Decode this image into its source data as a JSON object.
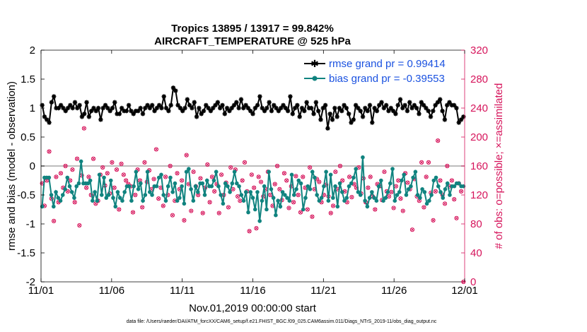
{
  "chart_data": {
    "type": "line",
    "title": "Tropics 13895 / 13917 = 99.842%",
    "subtitle": "AIRCRAFT_TEMPERATURE @ 525 hPa",
    "xlabel": "Nov.01,2019 00:00:00 start",
    "ylabel": "rmse and bias (model - observation)",
    "y2label": "# of obs: o=possible; ×=assimilated",
    "footnote": "data file: /Users/raeder/DAI/ATM_forcXX/CAM6_setup/f.e21.FHIST_BGC.f09_025.CAM6assim.011/Diags_NTrS_2019-11/obs_diag_output.nc",
    "xlim": [
      0,
      30
    ],
    "ylim": [
      -2,
      2
    ],
    "y2lim": [
      0,
      320
    ],
    "xticks": [
      0,
      5,
      10,
      15,
      20,
      25,
      30
    ],
    "xtick_labels": [
      "11/01",
      "11/06",
      "11/11",
      "11/16",
      "11/21",
      "11/26",
      "12/01"
    ],
    "yticks": [
      -2,
      -1.5,
      -1,
      -0.5,
      0,
      0.5,
      1,
      1.5,
      2
    ],
    "ytick_labels": [
      "-2",
      "-1.5",
      "-1",
      "-0.5",
      "0",
      "0.5",
      "1",
      "1.5",
      "2"
    ],
    "y2ticks": [
      0,
      40,
      80,
      120,
      160,
      200,
      240,
      280,
      320
    ],
    "y2tick_labels": [
      "0",
      "40",
      "80",
      "120",
      "160",
      "200",
      "240",
      "280",
      "320"
    ],
    "legend_position": "top-right",
    "zero_line": true,
    "series": [
      {
        "name": "rmse grand pr = 0.99414",
        "color": "#000000",
        "marker": "star",
        "values": [
          1.05,
          0.85,
          0.8,
          0.75,
          1.1,
          1.2,
          1.0,
          1.0,
          1.05,
          1.0,
          0.95,
          1.0,
          1.05,
          1.0,
          1.1,
          1.0,
          1.05,
          0.85,
          0.9,
          1.1,
          0.85,
          0.95,
          1.0,
          0.95,
          1.0,
          0.8,
          1.0,
          1.05,
          1.0,
          0.95,
          1.0,
          1.1,
          0.9,
          0.9,
          1.0,
          0.95,
          0.95,
          1.05,
          0.95,
          0.9,
          0.95,
          0.95,
          1.0,
          0.9,
          1.0,
          1.05,
          1.0,
          1.05,
          0.95,
          1.0,
          1.05,
          1.0,
          1.2,
          1.0,
          0.95,
          1.05,
          1.35,
          1.3,
          1.05,
          1.0,
          0.95,
          1.0,
          1.15,
          1.05,
          1.0,
          1.1,
          0.85,
          1.0,
          0.9,
          0.95,
          1.05,
          1.0,
          0.95,
          1.0,
          1.05,
          1.1,
          1.0,
          1.05,
          0.9,
          1.0,
          0.95,
          1.0,
          1.05,
          1.1,
          1.0,
          1.15,
          1.0,
          1.05,
          1.0,
          0.95,
          0.9,
          1.0,
          1.05,
          1.2,
          1.0,
          0.95,
          1.0,
          1.1,
          0.95,
          1.05,
          1.0,
          0.95,
          1.0,
          1.05,
          1.0,
          0.95,
          1.2,
          0.9,
          1.0,
          1.05,
          0.85,
          1.0,
          0.95,
          1.1,
          1.0,
          1.0,
          0.9,
          1.1,
          0.95,
          0.8,
          1.0,
          1.05,
          0.65,
          0.9,
          0.8,
          1.0,
          0.85,
          1.0,
          0.95,
          1.05,
          1.0,
          0.9,
          0.75,
          0.8,
          1.05,
          1.0,
          0.95,
          0.85,
          1.0,
          0.95,
          1.05,
          0.75,
          1.0,
          0.95,
          1.05,
          1.1,
          1.0,
          1.05,
          0.95,
          1.0,
          0.95,
          0.9,
          1.05,
          1.15,
          1.0,
          1.05,
          0.95,
          1.1,
          1.0,
          1.05,
          1.0,
          0.9,
          1.1,
          1.05,
          1.0,
          0.95,
          0.85,
          0.95,
          1.05,
          1.1,
          1.15,
          0.95,
          0.8,
          1.05,
          1.1,
          1.05,
          1.05,
          1.0,
          0.75,
          0.8,
          0.85
        ]
      },
      {
        "name": "bias grand pr = -0.39553",
        "color": "#10837f",
        "marker": "dot",
        "values": [
          -0.7,
          -0.2,
          -0.2,
          -0.2,
          -0.5,
          -0.7,
          -0.45,
          -0.55,
          -0.6,
          -0.5,
          -0.4,
          -0.2,
          -0.35,
          -0.45,
          -0.55,
          -0.35,
          -0.3,
          0.08,
          -0.3,
          -0.3,
          -0.3,
          -0.25,
          -0.6,
          -0.45,
          -0.6,
          -0.15,
          -0.5,
          -0.2,
          -0.55,
          -0.5,
          -0.25,
          -0.55,
          -0.7,
          -0.45,
          -0.55,
          -0.6,
          -0.45,
          -0.35,
          -0.35,
          -0.6,
          -0.35,
          -0.1,
          -0.4,
          -0.3,
          -0.6,
          -0.5,
          -0.1,
          -0.45,
          -0.5,
          -0.35,
          -0.35,
          -0.2,
          -0.15,
          -0.5,
          -0.6,
          -0.35,
          -0.2,
          -0.45,
          -0.3,
          -0.6,
          -0.55,
          -0.35,
          -0.65,
          -0.1,
          -0.05,
          -0.4,
          -0.6,
          -0.35,
          -0.45,
          -0.3,
          -0.3,
          -0.5,
          -0.25,
          -0.35,
          -0.35,
          -0.25,
          -0.1,
          -0.35,
          -0.5,
          -0.65,
          -0.3,
          -0.35,
          -0.45,
          -0.3,
          -0.1,
          -0.3,
          -0.35,
          -0.5,
          -0.6,
          -0.45,
          -0.8,
          -0.45,
          -0.55,
          -0.75,
          -0.45,
          -0.95,
          -0.6,
          -0.35,
          -0.75,
          -0.1,
          -0.4,
          -0.55,
          -0.85,
          -0.6,
          -0.7,
          -0.45,
          -0.5,
          -0.55,
          -0.6,
          -0.15,
          -0.5,
          -0.4,
          -0.25,
          -0.3,
          -0.75,
          -0.55,
          -0.35,
          -0.4,
          -0.1,
          -0.2,
          -0.5,
          -0.6,
          -0.55,
          -0.35,
          -0.1,
          -0.6,
          -0.15,
          -0.55,
          -0.35,
          -0.7,
          -0.3,
          -0.45,
          -0.6,
          -0.55,
          -0.35,
          -0.3,
          -0.2,
          -0.05,
          -0.45,
          -0.5,
          0.15,
          -0.6,
          -0.7,
          -0.55,
          -0.45,
          -0.55,
          -0.6,
          -0.35,
          -0.25,
          -0.6,
          -0.55,
          -0.45,
          -0.3,
          -0.05,
          -0.6,
          -0.5,
          -0.45,
          -0.25,
          -0.15,
          -0.5,
          -0.4,
          -0.35,
          -0.2,
          -0.1,
          -0.5,
          -0.55,
          -0.4,
          -0.45,
          -0.65,
          -0.6,
          -0.5,
          -0.25,
          -0.2,
          -0.35,
          -0.45,
          -0.55,
          -0.4,
          -0.3,
          -0.5,
          -0.35,
          -0.35,
          -0.3,
          -0.3,
          -0.35,
          -0.35
        ]
      },
      {
        "name": "# of obs possible",
        "color": "#d6145b",
        "marker": "circle",
        "axis": "right",
        "values": [
          136,
          105,
          140,
          180,
          115,
          84,
          145,
          110,
          150,
          130,
          160,
          125,
          140,
          155,
          110,
          170,
          78,
          147,
          212,
          130,
          145,
          120,
          170,
          108,
          112,
          148,
          158,
          133,
          150,
          122,
          165,
          130,
          155,
          100,
          163,
          148,
          140,
          135,
          132,
          96,
          120,
          155,
          140,
          103,
          165,
          138,
          154,
          128,
          142,
          183,
          115,
          130,
          105,
          145,
          120,
          160,
          92,
          112,
          150,
          128,
          140,
          85,
          175,
          135,
          98,
          152,
          132,
          120,
          143,
          95,
          130,
          162,
          110,
          145,
          125,
          135,
          95,
          148,
          120,
          137,
          103,
          158,
          128,
          155,
          118,
          112,
          140,
          165,
          125,
          70,
          148,
          130,
          74,
          145,
          138,
          118,
          128,
          152,
          120,
          105,
          135,
          160,
          128,
          113,
          150,
          140,
          102,
          132,
          110,
          146,
          120,
          96,
          145,
          130,
          100,
          158,
          90,
          128,
          142,
          138,
          110,
          120,
          134,
          118,
          95,
          105,
          152,
          128,
          160,
          140,
          125,
          110,
          145,
          117,
          135,
          130,
          158,
          122,
          143,
          110,
          130,
          145,
          118,
          100,
          135,
          132,
          113,
          152,
          125,
          118,
          124,
          102,
          132,
          140,
          115,
          98,
          150,
          137,
          128,
          72,
          142,
          118,
          112,
          165,
          103,
          145,
          165,
          123,
          85,
          125,
          195,
          140,
          120,
          108,
          160,
          132,
          140,
          114,
          88,
          136,
          125,
          0
        ]
      },
      {
        "name": "# of obs assimilated",
        "color": "#d6145b",
        "marker": "x",
        "axis": "right",
        "values": [
          136,
          105,
          140,
          180,
          115,
          84,
          145,
          110,
          150,
          130,
          160,
          125,
          140,
          155,
          110,
          170,
          78,
          147,
          212,
          130,
          145,
          120,
          170,
          108,
          112,
          148,
          158,
          133,
          150,
          122,
          165,
          130,
          155,
          100,
          163,
          148,
          140,
          135,
          132,
          96,
          120,
          155,
          140,
          103,
          165,
          138,
          154,
          128,
          142,
          183,
          115,
          130,
          105,
          145,
          120,
          160,
          92,
          112,
          150,
          128,
          140,
          85,
          175,
          135,
          98,
          152,
          132,
          120,
          143,
          95,
          130,
          162,
          110,
          145,
          125,
          135,
          95,
          148,
          120,
          137,
          103,
          158,
          128,
          155,
          118,
          112,
          140,
          165,
          125,
          70,
          148,
          130,
          74,
          145,
          138,
          118,
          128,
          152,
          120,
          105,
          135,
          160,
          128,
          113,
          150,
          140,
          102,
          132,
          110,
          146,
          120,
          96,
          145,
          130,
          100,
          158,
          90,
          128,
          142,
          138,
          110,
          120,
          134,
          118,
          95,
          105,
          152,
          128,
          160,
          140,
          125,
          110,
          145,
          117,
          135,
          130,
          158,
          122,
          143,
          110,
          130,
          145,
          118,
          100,
          135,
          132,
          113,
          152,
          125,
          118,
          124,
          102,
          132,
          140,
          115,
          98,
          150,
          137,
          128,
          72,
          142,
          118,
          112,
          165,
          103,
          145,
          165,
          123,
          85,
          125,
          195,
          140,
          120,
          108,
          160,
          132,
          140,
          114,
          88,
          136,
          125,
          0
        ]
      }
    ]
  }
}
